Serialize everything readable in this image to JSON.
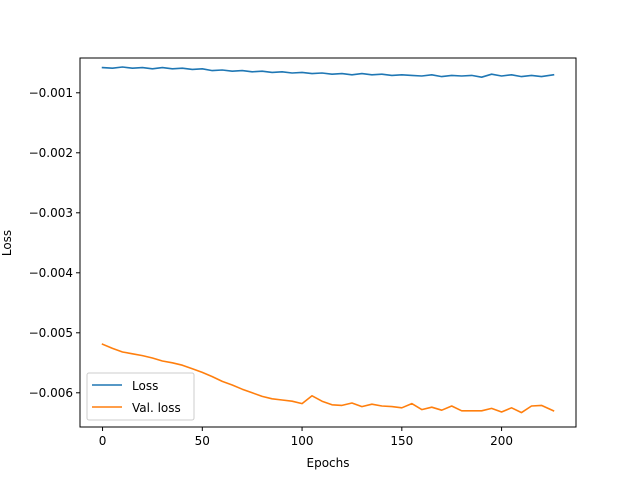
{
  "chart_data": {
    "type": "line",
    "title": "",
    "xlabel": "Epochs",
    "ylabel": "Loss",
    "xlim": [
      -11.3,
      237.3
    ],
    "ylim": [
      -0.00657,
      -0.00042
    ],
    "xticks": [
      0,
      50,
      100,
      150,
      200
    ],
    "xtick_labels": [
      "0",
      "50",
      "100",
      "150",
      "200"
    ],
    "yticks": [
      -0.006,
      -0.005,
      -0.004,
      -0.003,
      -0.002,
      -0.001
    ],
    "ytick_labels": [
      "−0.006",
      "−0.005",
      "−0.004",
      "−0.003",
      "−0.002",
      "−0.001"
    ],
    "grid": false,
    "legend_position": "lower-left",
    "series": [
      {
        "name": "Loss",
        "color": "#1f77b4",
        "x": [
          0,
          5,
          10,
          15,
          20,
          25,
          30,
          35,
          40,
          45,
          50,
          55,
          60,
          65,
          70,
          75,
          80,
          85,
          90,
          95,
          100,
          105,
          110,
          115,
          120,
          125,
          130,
          135,
          140,
          145,
          150,
          155,
          160,
          165,
          170,
          175,
          180,
          185,
          190,
          195,
          200,
          205,
          210,
          215,
          220,
          226
        ],
        "y": [
          -0.00058,
          -0.00059,
          -0.00057,
          -0.00059,
          -0.00058,
          -0.0006,
          -0.00058,
          -0.0006,
          -0.00059,
          -0.00061,
          -0.0006,
          -0.00063,
          -0.00062,
          -0.00064,
          -0.00063,
          -0.00065,
          -0.00064,
          -0.00066,
          -0.00065,
          -0.00067,
          -0.00066,
          -0.00068,
          -0.00067,
          -0.00069,
          -0.00068,
          -0.0007,
          -0.00068,
          -0.0007,
          -0.00069,
          -0.00071,
          -0.0007,
          -0.00071,
          -0.00072,
          -0.0007,
          -0.00073,
          -0.00071,
          -0.00072,
          -0.00071,
          -0.00074,
          -0.00069,
          -0.00072,
          -0.0007,
          -0.00073,
          -0.00071,
          -0.00073,
          -0.0007
        ]
      },
      {
        "name": "Val. loss",
        "color": "#ff7f0e",
        "x": [
          0,
          5,
          10,
          15,
          20,
          25,
          30,
          35,
          40,
          45,
          50,
          55,
          60,
          65,
          70,
          75,
          80,
          85,
          90,
          95,
          100,
          105,
          110,
          115,
          120,
          125,
          130,
          135,
          140,
          145,
          150,
          155,
          160,
          165,
          170,
          175,
          180,
          185,
          190,
          195,
          200,
          205,
          210,
          215,
          220,
          226
        ],
        "y": [
          -0.00519,
          -0.00526,
          -0.00532,
          -0.00535,
          -0.00538,
          -0.00542,
          -0.00547,
          -0.0055,
          -0.00554,
          -0.0056,
          -0.00566,
          -0.00573,
          -0.00581,
          -0.00587,
          -0.00594,
          -0.006,
          -0.00606,
          -0.0061,
          -0.00612,
          -0.00614,
          -0.00618,
          -0.00605,
          -0.00614,
          -0.0062,
          -0.00621,
          -0.00617,
          -0.00623,
          -0.00619,
          -0.00622,
          -0.00623,
          -0.00625,
          -0.00618,
          -0.00628,
          -0.00624,
          -0.00629,
          -0.00622,
          -0.0063,
          -0.0063,
          -0.0063,
          -0.00626,
          -0.00632,
          -0.00625,
          -0.00633,
          -0.00622,
          -0.00621,
          -0.0063
        ]
      }
    ]
  }
}
